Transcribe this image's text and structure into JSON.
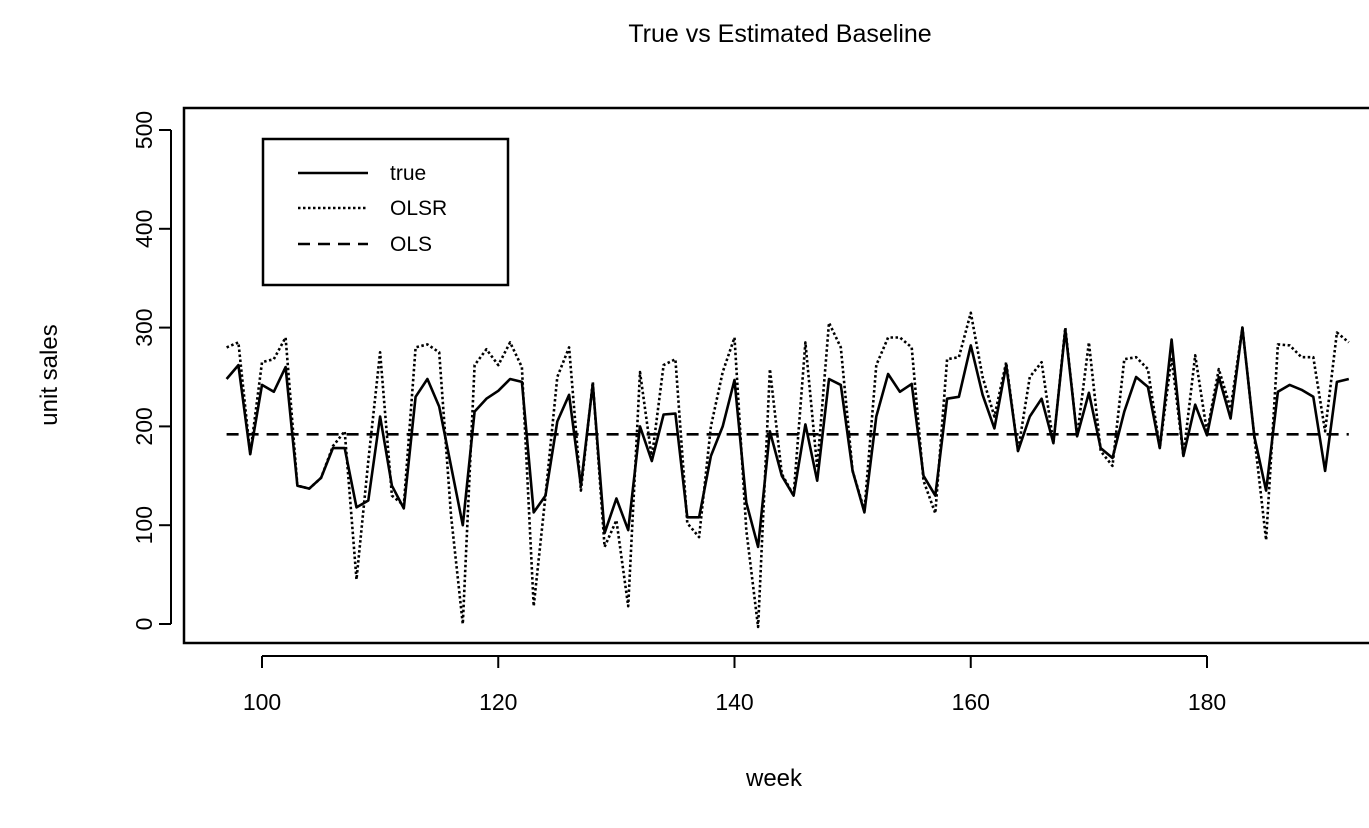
{
  "chart_data": {
    "type": "line",
    "title": "True vs Estimated Baseline",
    "xlabel": "week",
    "ylabel": "unit sales",
    "xlim": [
      97,
      192
    ],
    "ylim": [
      0,
      500
    ],
    "x_ticks": [
      100,
      120,
      140,
      160,
      180
    ],
    "x_tick_labels": [
      "100",
      "120",
      "140",
      "160",
      "180"
    ],
    "y_ticks": [
      0,
      100,
      200,
      300,
      400,
      500
    ],
    "y_tick_labels": [
      "0",
      "100",
      "200",
      "300",
      "400",
      "500"
    ],
    "grid": false,
    "legend_position": "top-left",
    "x": [
      97,
      98,
      99,
      100,
      101,
      102,
      103,
      104,
      105,
      106,
      107,
      108,
      109,
      110,
      111,
      112,
      113,
      114,
      115,
      116,
      117,
      118,
      119,
      120,
      121,
      122,
      123,
      124,
      125,
      126,
      127,
      128,
      129,
      130,
      131,
      132,
      133,
      134,
      135,
      136,
      137,
      138,
      139,
      140,
      141,
      142,
      143,
      144,
      145,
      146,
      147,
      148,
      149,
      150,
      151,
      152,
      153,
      154,
      155,
      156,
      157,
      158,
      159,
      160,
      161,
      162,
      163,
      164,
      165,
      166,
      167,
      168,
      169,
      170,
      171,
      172,
      173,
      174,
      175,
      176,
      177,
      178,
      179,
      180,
      181,
      182,
      183,
      184,
      185,
      186,
      187,
      188,
      189,
      190,
      191,
      192
    ],
    "series": [
      {
        "name": "true",
        "style": "solid",
        "values": [
          248,
          262,
          172,
          242,
          235,
          260,
          140,
          137,
          148,
          178,
          178,
          118,
          125,
          210,
          140,
          117,
          230,
          248,
          220,
          160,
          100,
          215,
          228,
          236,
          248,
          245,
          113,
          130,
          205,
          232,
          140,
          243,
          92,
          127,
          95,
          200,
          165,
          212,
          213,
          108,
          108,
          170,
          200,
          247,
          123,
          78,
          195,
          150,
          130,
          202,
          145,
          248,
          242,
          155,
          113,
          210,
          253,
          235,
          243,
          150,
          130,
          228,
          230,
          282,
          232,
          198,
          262,
          175,
          210,
          228,
          183,
          298,
          190,
          234,
          178,
          168,
          215,
          250,
          240,
          178,
          288,
          170,
          222,
          191,
          250,
          208,
          300,
          190,
          135,
          235,
          242,
          237,
          230,
          155,
          245,
          248
        ]
      },
      {
        "name": "OLSR",
        "style": "dotted",
        "values": [
          280,
          285,
          172,
          265,
          268,
          290,
          140,
          137,
          148,
          180,
          195,
          45,
          165,
          275,
          130,
          120,
          280,
          283,
          275,
          110,
          0,
          262,
          278,
          262,
          285,
          260,
          18,
          130,
          250,
          280,
          135,
          245,
          78,
          105,
          18,
          255,
          168,
          262,
          268,
          102,
          88,
          200,
          255,
          290,
          95,
          -3,
          258,
          152,
          130,
          285,
          158,
          305,
          280,
          155,
          115,
          262,
          290,
          290,
          280,
          145,
          112,
          268,
          270,
          315,
          250,
          210,
          265,
          175,
          250,
          265,
          183,
          300,
          190,
          285,
          175,
          160,
          268,
          270,
          258,
          178,
          270,
          170,
          272,
          194,
          258,
          218,
          300,
          190,
          85,
          283,
          282,
          270,
          270,
          195,
          295,
          285
        ]
      },
      {
        "name": "OLS",
        "style": "dashed",
        "values": [
          192,
          192,
          192,
          192,
          192,
          192,
          192,
          192,
          192,
          192,
          192,
          192,
          192,
          192,
          192,
          192,
          192,
          192,
          192,
          192,
          192,
          192,
          192,
          192,
          192,
          192,
          192,
          192,
          192,
          192,
          192,
          192,
          192,
          192,
          192,
          192,
          192,
          192,
          192,
          192,
          192,
          192,
          192,
          192,
          192,
          192,
          192,
          192,
          192,
          192,
          192,
          192,
          192,
          192,
          192,
          192,
          192,
          192,
          192,
          192,
          192,
          192,
          192,
          192,
          192,
          192,
          192,
          192,
          192,
          192,
          192,
          192,
          192,
          192,
          192,
          192,
          192,
          192,
          192,
          192,
          192,
          192,
          192,
          192,
          192,
          192,
          192,
          192,
          192,
          192,
          192,
          192,
          192,
          192,
          192,
          192
        ]
      }
    ]
  }
}
